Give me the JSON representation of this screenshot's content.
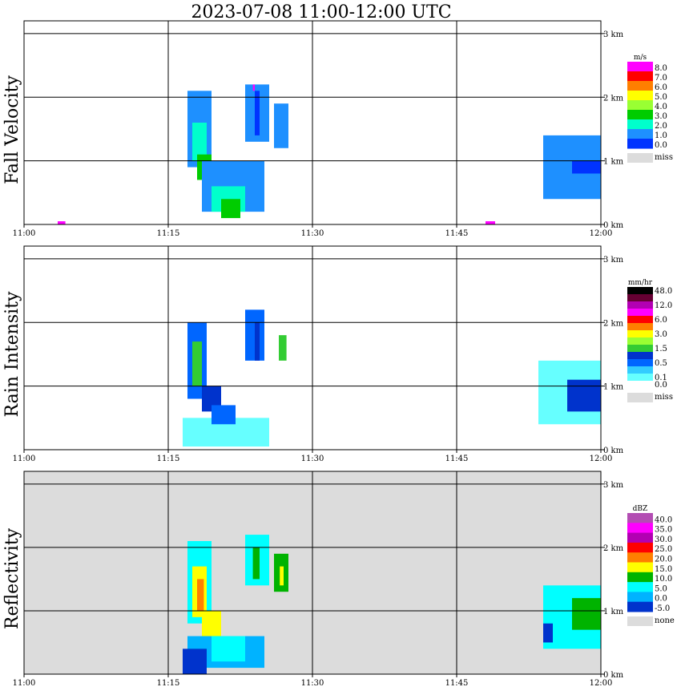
{
  "title": "2023-07-08   11:00-12:00 UTC",
  "time_ticks": [
    "11:00",
    "11:15",
    "11:30",
    "11:45",
    "12:00"
  ],
  "height_ticks": [
    "0 km",
    "1 km",
    "2 km",
    "3 km"
  ],
  "chart_data": [
    {
      "type": "heatmap",
      "id": "fall",
      "ylabel": "Fall Velocity",
      "unit": "m/s",
      "x_range": [
        0,
        60
      ],
      "x_unit": "minutes after 11:00 UTC",
      "y_range": [
        0,
        3.2
      ],
      "y_unit": "km",
      "background": "#ffffff",
      "legend": [
        {
          "label": "8.0",
          "color": "#ff00ff"
        },
        {
          "label": "7.0",
          "color": "#ff0000"
        },
        {
          "label": "6.0",
          "color": "#ff7f00"
        },
        {
          "label": "5.0",
          "color": "#ffff00"
        },
        {
          "label": "4.0",
          "color": "#99ff33"
        },
        {
          "label": "3.0",
          "color": "#00cc00"
        },
        {
          "label": "2.0",
          "color": "#00ffcc"
        },
        {
          "label": "1.0",
          "color": "#1e90ff"
        },
        {
          "label": "0.0",
          "color": "#0033ff"
        }
      ],
      "miss_label": "miss",
      "cells": [
        {
          "t0": 17.0,
          "t1": 19.5,
          "h0": 0.9,
          "h1": 2.1,
          "color": "#1e90ff"
        },
        {
          "t0": 17.5,
          "t1": 19.0,
          "h0": 1.0,
          "h1": 1.6,
          "color": "#00ffcc"
        },
        {
          "t0": 18.0,
          "t1": 19.5,
          "h0": 0.7,
          "h1": 1.1,
          "color": "#00cc00"
        },
        {
          "t0": 18.5,
          "t1": 25.0,
          "h0": 0.2,
          "h1": 1.0,
          "color": "#1e90ff"
        },
        {
          "t0": 19.5,
          "t1": 23.0,
          "h0": 0.2,
          "h1": 0.6,
          "color": "#00ffcc"
        },
        {
          "t0": 20.5,
          "t1": 22.5,
          "h0": 0.1,
          "h1": 0.4,
          "color": "#00cc00"
        },
        {
          "t0": 23.0,
          "t1": 25.5,
          "h0": 1.3,
          "h1": 2.2,
          "color": "#1e90ff"
        },
        {
          "t0": 24.0,
          "t1": 24.5,
          "h0": 1.4,
          "h1": 2.1,
          "color": "#0033ff"
        },
        {
          "t0": 26.0,
          "t1": 27.5,
          "h0": 1.2,
          "h1": 1.9,
          "color": "#1e90ff"
        },
        {
          "t0": 23.8,
          "t1": 24.0,
          "h0": 2.1,
          "h1": 2.2,
          "color": "#ff00ff"
        },
        {
          "t0": 54.0,
          "t1": 60.0,
          "h0": 0.4,
          "h1": 1.4,
          "color": "#1e90ff"
        },
        {
          "t0": 57.0,
          "t1": 60.0,
          "h0": 0.8,
          "h1": 1.0,
          "color": "#0033ff"
        },
        {
          "t0": 3.5,
          "t1": 4.3,
          "h0": 0.0,
          "h1": 0.05,
          "color": "#ff00ff"
        },
        {
          "t0": 48.0,
          "t1": 49.0,
          "h0": 0.0,
          "h1": 0.05,
          "color": "#ff00ff"
        }
      ]
    },
    {
      "type": "heatmap",
      "id": "rain",
      "ylabel": "Rain Intensity",
      "unit": "mm/hr",
      "x_range": [
        0,
        60
      ],
      "x_unit": "minutes after 11:00 UTC",
      "y_range": [
        0,
        3.2
      ],
      "y_unit": "km",
      "background": "#ffffff",
      "legend": [
        {
          "label": "48.0",
          "color": "#000000"
        },
        {
          "label": "",
          "color": "#660033"
        },
        {
          "label": "12.0",
          "color": "#b300b3"
        },
        {
          "label": "",
          "color": "#ff00ff"
        },
        {
          "label": "6.0",
          "color": "#ff0000"
        },
        {
          "label": "",
          "color": "#ff7f00"
        },
        {
          "label": "3.0",
          "color": "#ffff00"
        },
        {
          "label": "",
          "color": "#99ff33"
        },
        {
          "label": "1.5",
          "color": "#33cc33"
        },
        {
          "label": "",
          "color": "#0033cc"
        },
        {
          "label": "0.5",
          "color": "#0066ff"
        },
        {
          "label": "",
          "color": "#33ccff"
        },
        {
          "label": "0.1",
          "color": "#66ffff"
        },
        {
          "label": "0.0",
          "color": "#ffffff"
        }
      ],
      "miss_label": "miss",
      "cells": [
        {
          "t0": 17.0,
          "t1": 19.0,
          "h0": 0.8,
          "h1": 2.0,
          "color": "#0066ff"
        },
        {
          "t0": 17.5,
          "t1": 18.5,
          "h0": 1.0,
          "h1": 1.7,
          "color": "#33cc33"
        },
        {
          "t0": 18.5,
          "t1": 20.5,
          "h0": 0.6,
          "h1": 1.0,
          "color": "#0033cc"
        },
        {
          "t0": 16.5,
          "t1": 25.5,
          "h0": 0.05,
          "h1": 0.5,
          "color": "#66ffff"
        },
        {
          "t0": 19.5,
          "t1": 22.0,
          "h0": 0.4,
          "h1": 0.7,
          "color": "#0066ff"
        },
        {
          "t0": 23.0,
          "t1": 25.0,
          "h0": 1.4,
          "h1": 2.2,
          "color": "#0066ff"
        },
        {
          "t0": 24.0,
          "t1": 24.5,
          "h0": 1.4,
          "h1": 2.0,
          "color": "#0033cc"
        },
        {
          "t0": 26.5,
          "t1": 27.3,
          "h0": 1.4,
          "h1": 1.8,
          "color": "#33cc33"
        },
        {
          "t0": 53.5,
          "t1": 60.0,
          "h0": 0.4,
          "h1": 1.4,
          "color": "#66ffff"
        },
        {
          "t0": 56.5,
          "t1": 60.0,
          "h0": 0.6,
          "h1": 1.1,
          "color": "#0033cc"
        }
      ]
    },
    {
      "type": "heatmap",
      "id": "refl",
      "ylabel": "Reflectivity",
      "unit": "dBZ",
      "x_range": [
        0,
        60
      ],
      "x_unit": "minutes after 11:00 UTC",
      "y_range": [
        0,
        3.2
      ],
      "y_unit": "km",
      "background": "#dcdcdc",
      "legend": [
        {
          "label": "40.0",
          "color": "#b34db3"
        },
        {
          "label": "35.0",
          "color": "#ff00ff"
        },
        {
          "label": "30.0",
          "color": "#b300b3"
        },
        {
          "label": "25.0",
          "color": "#ff0000"
        },
        {
          "label": "20.0",
          "color": "#ff7f00"
        },
        {
          "label": "15.0",
          "color": "#ffff00"
        },
        {
          "label": "10.0",
          "color": "#00b300"
        },
        {
          "label": "5.0",
          "color": "#00ffff"
        },
        {
          "label": "0.0",
          "color": "#00b3ff"
        },
        {
          "label": "-5.0",
          "color": "#0033cc"
        }
      ],
      "miss_label": "none",
      "cells": [
        {
          "t0": 17.0,
          "t1": 19.5,
          "h0": 0.8,
          "h1": 2.1,
          "color": "#00ffff"
        },
        {
          "t0": 17.5,
          "t1": 19.0,
          "h0": 0.9,
          "h1": 1.7,
          "color": "#ffff00"
        },
        {
          "t0": 18.0,
          "t1": 18.7,
          "h0": 1.0,
          "h1": 1.5,
          "color": "#ff7f00"
        },
        {
          "t0": 18.5,
          "t1": 20.5,
          "h0": 0.6,
          "h1": 1.0,
          "color": "#ffff00"
        },
        {
          "t0": 17.0,
          "t1": 25.0,
          "h0": 0.1,
          "h1": 0.6,
          "color": "#00b3ff"
        },
        {
          "t0": 19.5,
          "t1": 23.0,
          "h0": 0.2,
          "h1": 0.6,
          "color": "#00ffff"
        },
        {
          "t0": 16.5,
          "t1": 19.0,
          "h0": 0.0,
          "h1": 0.4,
          "color": "#0033cc"
        },
        {
          "t0": 23.0,
          "t1": 25.5,
          "h0": 1.4,
          "h1": 2.2,
          "color": "#00ffff"
        },
        {
          "t0": 23.8,
          "t1": 24.5,
          "h0": 1.5,
          "h1": 2.0,
          "color": "#00b300"
        },
        {
          "t0": 26.0,
          "t1": 27.5,
          "h0": 1.3,
          "h1": 1.9,
          "color": "#00b300"
        },
        {
          "t0": 26.6,
          "t1": 27.0,
          "h0": 1.4,
          "h1": 1.7,
          "color": "#ffff00"
        },
        {
          "t0": 54.0,
          "t1": 60.0,
          "h0": 0.4,
          "h1": 1.4,
          "color": "#00ffff"
        },
        {
          "t0": 57.0,
          "t1": 60.0,
          "h0": 0.7,
          "h1": 1.2,
          "color": "#00b300"
        },
        {
          "t0": 54.0,
          "t1": 55.0,
          "h0": 0.5,
          "h1": 0.8,
          "color": "#0033cc"
        }
      ]
    }
  ]
}
